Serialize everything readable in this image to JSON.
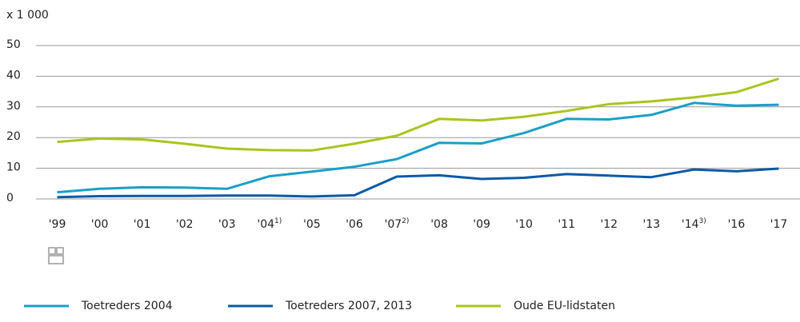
{
  "chart_data": {
    "type": "line",
    "unit_label": "x 1 000",
    "categories": [
      "'99",
      "'00",
      "'01",
      "'02",
      "'03",
      "'04",
      "'05",
      "'06",
      "'07",
      "'08",
      "'09",
      "'10",
      "'11",
      "'12",
      "'13",
      "'14",
      "'16",
      "'17"
    ],
    "category_notes": [
      null,
      null,
      null,
      null,
      null,
      "1)",
      null,
      null,
      "2)",
      null,
      null,
      null,
      null,
      null,
      null,
      "3)",
      null,
      null
    ],
    "series": [
      {
        "name": "Toetreders 2004",
        "color": "#1a9fc9",
        "values": [
          2.2,
          3.3,
          3.8,
          3.7,
          3.3,
          7.4,
          8.9,
          10.5,
          13.0,
          18.3,
          18.1,
          21.5,
          26.1,
          25.9,
          27.4,
          31.3,
          30.4,
          30.7
        ]
      },
      {
        "name": "Toetreders 2007, 2013",
        "color": "#0b5aa6",
        "values": [
          0.6,
          0.9,
          1.0,
          1.0,
          1.1,
          1.1,
          0.8,
          1.2,
          7.3,
          7.7,
          6.5,
          6.9,
          8.1,
          7.6,
          7.1,
          9.6,
          9.0,
          9.9
        ]
      },
      {
        "name": "Oude EU-lidstaten",
        "color": "#a8c51d",
        "values": [
          18.6,
          19.7,
          19.4,
          18.0,
          16.4,
          15.9,
          15.8,
          18.0,
          20.6,
          26.1,
          25.6,
          26.8,
          28.7,
          30.9,
          31.8,
          33.1,
          34.8,
          39.2
        ]
      }
    ],
    "ylim": [
      0,
      50
    ],
    "yticks": [
      0,
      10,
      20,
      30,
      40,
      50
    ],
    "grid": true
  }
}
